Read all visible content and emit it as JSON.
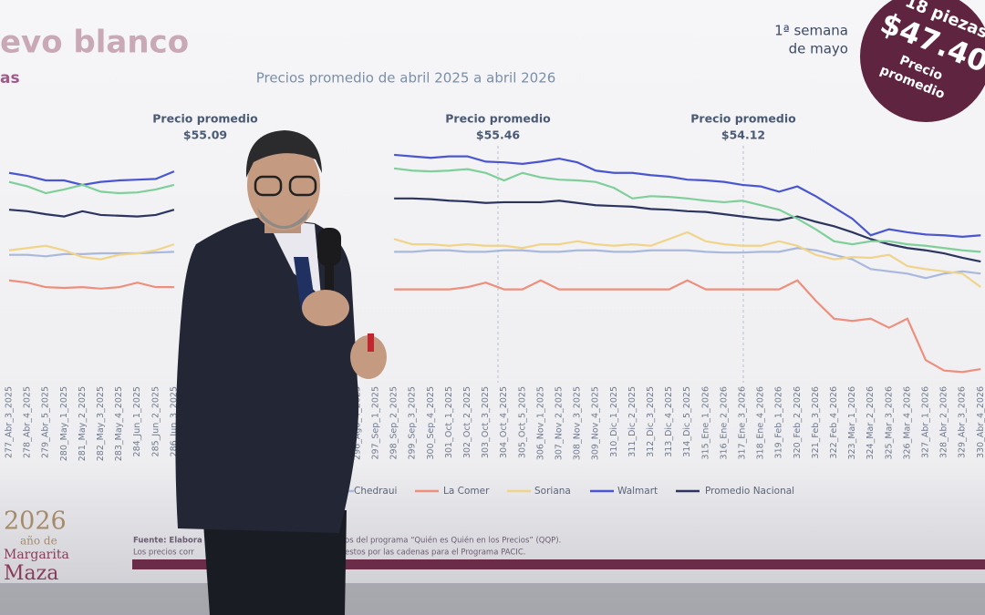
{
  "chart_data": {
    "type": "line",
    "title": "evo blanco",
    "title_fragment": "as",
    "subtitle": "Precios promedio de abril 2025 a abril 2026",
    "annotations": [
      {
        "label": "Precio promedio",
        "value_label": "$55.09"
      },
      {
        "label": "Precio promedio",
        "value_label": "$55.46"
      },
      {
        "label": "Precio promedio",
        "value_label": "$54.12"
      }
    ],
    "week_note": [
      "1ª semana",
      "de mayo"
    ],
    "badge": [
      "18 piezas",
      "$47.40",
      "Precio",
      "promedio"
    ],
    "source": [
      "Fuente: Elabora",
      "os del programa “Quién es Quién en los Precios” (QQP).",
      "Los precios corr",
      "estos por las cadenas para el Programa PACIC."
    ],
    "logo": [
      "2026",
      "año de",
      "Margarita",
      "Maza"
    ],
    "categories": [
      "277_Abr_3_2025",
      "278_Abr_4_2025",
      "279_Abr_5_2025",
      "280_May_1_2025",
      "281_May_2_2025",
      "282_May_3_2025",
      "283_May_4_2025",
      "284_Jun_1_2025",
      "285_Jun_2_2025",
      "286_Jun_3_2025",
      null,
      null,
      null,
      null,
      null,
      null,
      null,
      null,
      null,
      "296_Ago_4_2025",
      "297_Sep_1_2025",
      "298_Sep_2_2025",
      "299_Sep_3_2025",
      "300_Sep_4_2025",
      "301_Oct_1_2025",
      "302_Oct_2_2025",
      "303_Oct_3_2025",
      "304_Oct_4_2025",
      "305_Oct_5_2025",
      "306_Nov_1_2025",
      "307_Nov_2_2025",
      "308_Nov_3_2025",
      "309_Nov_4_2025",
      "310_Dic_1_2025",
      "311_Dic_2_2025",
      "312_Dic_3_2025",
      "313_Dic_4_2025",
      "314_Dic_5_2025",
      "315_Ene_1_2026",
      "316_Ene_2_2026",
      "317_Ene_3_2026",
      "318_Ene_4_2026",
      "319_Feb_1_2026",
      "320_Feb_2_2026",
      "321_Feb_3_2026",
      "322_Feb_4_2026",
      "323_Mar_1_2026",
      "324_Mar_2_2026",
      "325_Mar_3_2026",
      "326_Mar_4_2026",
      "327_Abr_1_2026",
      "328_Abr_2_2026",
      "329_Abr_3_2026",
      "330_Abr_4_2026"
    ],
    "ylim": [
      32,
      82
    ],
    "series": [
      {
        "name": "Chedraui",
        "color": "#a9b8dc",
        "values": [
          48.1,
          48.1,
          47.9,
          48.2,
          48.2,
          48.3,
          48.3,
          48.3,
          48.4,
          48.5,
          null,
          null,
          null,
          null,
          null,
          null,
          null,
          null,
          null,
          null,
          null,
          48.5,
          48.5,
          48.7,
          48.7,
          48.5,
          48.5,
          48.7,
          48.7,
          48.5,
          48.5,
          48.7,
          48.7,
          48.5,
          48.5,
          48.7,
          48.7,
          48.7,
          48.5,
          48.4,
          48.4,
          48.5,
          48.5,
          49.0,
          48.7,
          48.1,
          47.5,
          46.2,
          45.9,
          45.6,
          45.0,
          45.6,
          45.9,
          45.6
        ]
      },
      {
        "name": "La Comer",
        "color": "#ee8f7d",
        "values": [
          44.7,
          44.4,
          43.8,
          43.7,
          43.8,
          43.6,
          43.8,
          44.4,
          43.8,
          43.8,
          null,
          null,
          null,
          null,
          null,
          null,
          null,
          null,
          null,
          null,
          null,
          43.5,
          43.5,
          43.5,
          43.5,
          43.8,
          44.4,
          43.5,
          43.5,
          44.7,
          43.5,
          43.5,
          43.5,
          43.5,
          43.5,
          43.5,
          43.5,
          44.7,
          43.5,
          43.5,
          43.5,
          43.5,
          43.5,
          44.7,
          42.0,
          39.6,
          39.3,
          39.6,
          38.4,
          39.6,
          34.1,
          32.7,
          32.5,
          32.9
        ]
      },
      {
        "name": "Soriana",
        "color": "#f0d48a",
        "values": [
          48.7,
          49.0,
          49.3,
          48.7,
          47.8,
          47.5,
          48.1,
          48.3,
          48.7,
          49.5,
          null,
          null,
          null,
          null,
          null,
          null,
          null,
          null,
          null,
          null,
          null,
          50.2,
          49.5,
          49.5,
          49.3,
          49.5,
          49.3,
          49.3,
          49.0,
          49.5,
          49.5,
          49.9,
          49.5,
          49.3,
          49.5,
          49.3,
          50.2,
          51.1,
          49.9,
          49.5,
          49.3,
          49.3,
          49.9,
          49.3,
          48.1,
          47.5,
          47.8,
          47.7,
          48.1,
          46.6,
          46.2,
          45.9,
          45.6,
          43.8
        ]
      },
      {
        "name": "Walmart",
        "color": "#4a56d0",
        "values": [
          59.0,
          58.6,
          58.0,
          58.0,
          57.4,
          57.8,
          58.0,
          58.1,
          58.2,
          59.2,
          null,
          null,
          null,
          null,
          null,
          null,
          null,
          null,
          null,
          null,
          null,
          61.4,
          61.2,
          61.0,
          61.2,
          61.2,
          60.5,
          60.4,
          60.2,
          60.5,
          60.9,
          60.4,
          59.3,
          59.0,
          59.0,
          58.7,
          58.5,
          58.1,
          58.0,
          57.8,
          57.4,
          57.2,
          56.5,
          57.2,
          55.9,
          54.4,
          52.9,
          50.7,
          51.5,
          51.1,
          50.8,
          50.7,
          50.5,
          50.7
        ]
      },
      {
        "name": "Promedio Nacional",
        "color": "#2c3560",
        "values": [
          54.1,
          53.9,
          53.5,
          53.2,
          53.9,
          53.4,
          53.3,
          53.2,
          53.4,
          54.1,
          null,
          null,
          null,
          null,
          null,
          null,
          null,
          null,
          null,
          null,
          null,
          55.6,
          55.6,
          55.5,
          55.3,
          55.2,
          55.0,
          55.1,
          55.1,
          55.1,
          55.3,
          55.0,
          54.7,
          54.6,
          54.5,
          54.2,
          54.1,
          53.9,
          53.8,
          53.5,
          53.2,
          52.9,
          52.7,
          53.2,
          52.5,
          51.9,
          51.1,
          50.2,
          49.5,
          49.0,
          48.7,
          48.3,
          47.7,
          47.2
        ]
      },
      {
        "color": "#7fcf9a",
        "values": [
          57.8,
          57.2,
          56.3,
          56.8,
          57.4,
          56.5,
          56.3,
          56.4,
          56.8,
          57.4,
          null,
          null,
          null,
          null,
          null,
          null,
          null,
          null,
          null,
          null,
          null,
          59.6,
          59.3,
          59.2,
          59.3,
          59.5,
          59.0,
          58.0,
          59.0,
          58.4,
          58.1,
          58.0,
          57.8,
          57.0,
          55.6,
          55.9,
          55.8,
          55.6,
          55.3,
          55.1,
          55.3,
          54.7,
          54.1,
          52.9,
          51.5,
          49.9,
          49.5,
          49.9,
          49.9,
          49.5,
          49.3,
          49.0,
          48.7,
          48.5
        ]
      }
    ]
  }
}
